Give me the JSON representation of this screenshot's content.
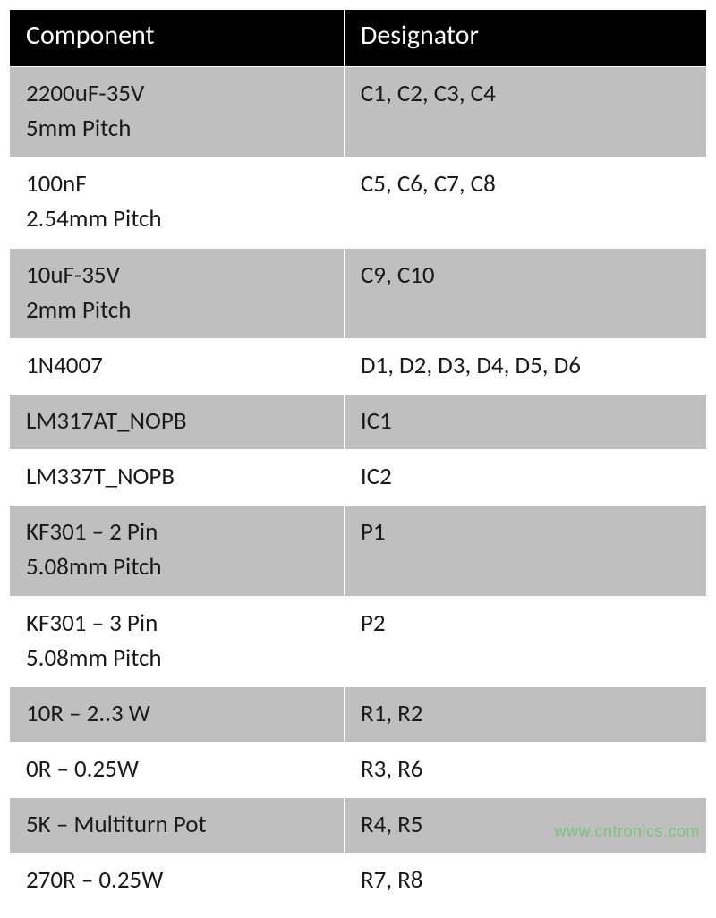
{
  "table": {
    "header_bg": "#000000",
    "header_color": "#ffffff",
    "grey_bg": "#bfbfbf",
    "white_bg": "#ffffff",
    "border_color": "#ffffff",
    "font_size_header": 30,
    "font_size_cell": 27,
    "columns": [
      {
        "key": "component",
        "label": "Component"
      },
      {
        "key": "designator",
        "label": "Designator"
      }
    ],
    "rows": [
      {
        "bg": "grey",
        "component_l1": "2200uF-35V",
        "component_l2": "5mm Pitch",
        "designator": "C1, C2, C3, C4"
      },
      {
        "bg": "white",
        "component_l1": "100nF",
        "component_l2": "2.54mm Pitch",
        "designator": "C5, C6, C7, C8"
      },
      {
        "bg": "grey",
        "component_l1": "10uF-35V",
        "component_l2": "2mm Pitch",
        "designator": "C9, C10"
      },
      {
        "bg": "white",
        "component_l1": "1N4007",
        "component_l2": "",
        "designator": "D1, D2, D3, D4, D5, D6"
      },
      {
        "bg": "grey",
        "component_l1": "LM317AT_NOPB",
        "component_l2": "",
        "designator": "IC1"
      },
      {
        "bg": "white",
        "component_l1": "LM337T_NOPB",
        "component_l2": "",
        "designator": "IC2"
      },
      {
        "bg": "grey",
        "component_l1": "KF301 – 2 Pin",
        "component_l2": "5.08mm Pitch",
        "designator": "P1"
      },
      {
        "bg": "white",
        "component_l1": "KF301 – 3 Pin",
        "component_l2": "5.08mm Pitch",
        "designator": "P2"
      },
      {
        "bg": "grey",
        "component_l1": "10R – 2..3 W",
        "component_l2": "",
        "designator": "R1, R2"
      },
      {
        "bg": "white",
        "component_l1": "0R – 0.25W",
        "component_l2": "",
        "designator": "R3, R6"
      },
      {
        "bg": "grey",
        "component_l1": "5K – Multiturn Pot",
        "component_l2": "",
        "designator": "R4, R5"
      },
      {
        "bg": "white",
        "component_l1": "270R – 0.25W",
        "component_l2": "",
        "designator": "R7, R8"
      }
    ]
  },
  "watermark": {
    "text": "www.cntronics.com",
    "color": "#7fbf7f"
  }
}
